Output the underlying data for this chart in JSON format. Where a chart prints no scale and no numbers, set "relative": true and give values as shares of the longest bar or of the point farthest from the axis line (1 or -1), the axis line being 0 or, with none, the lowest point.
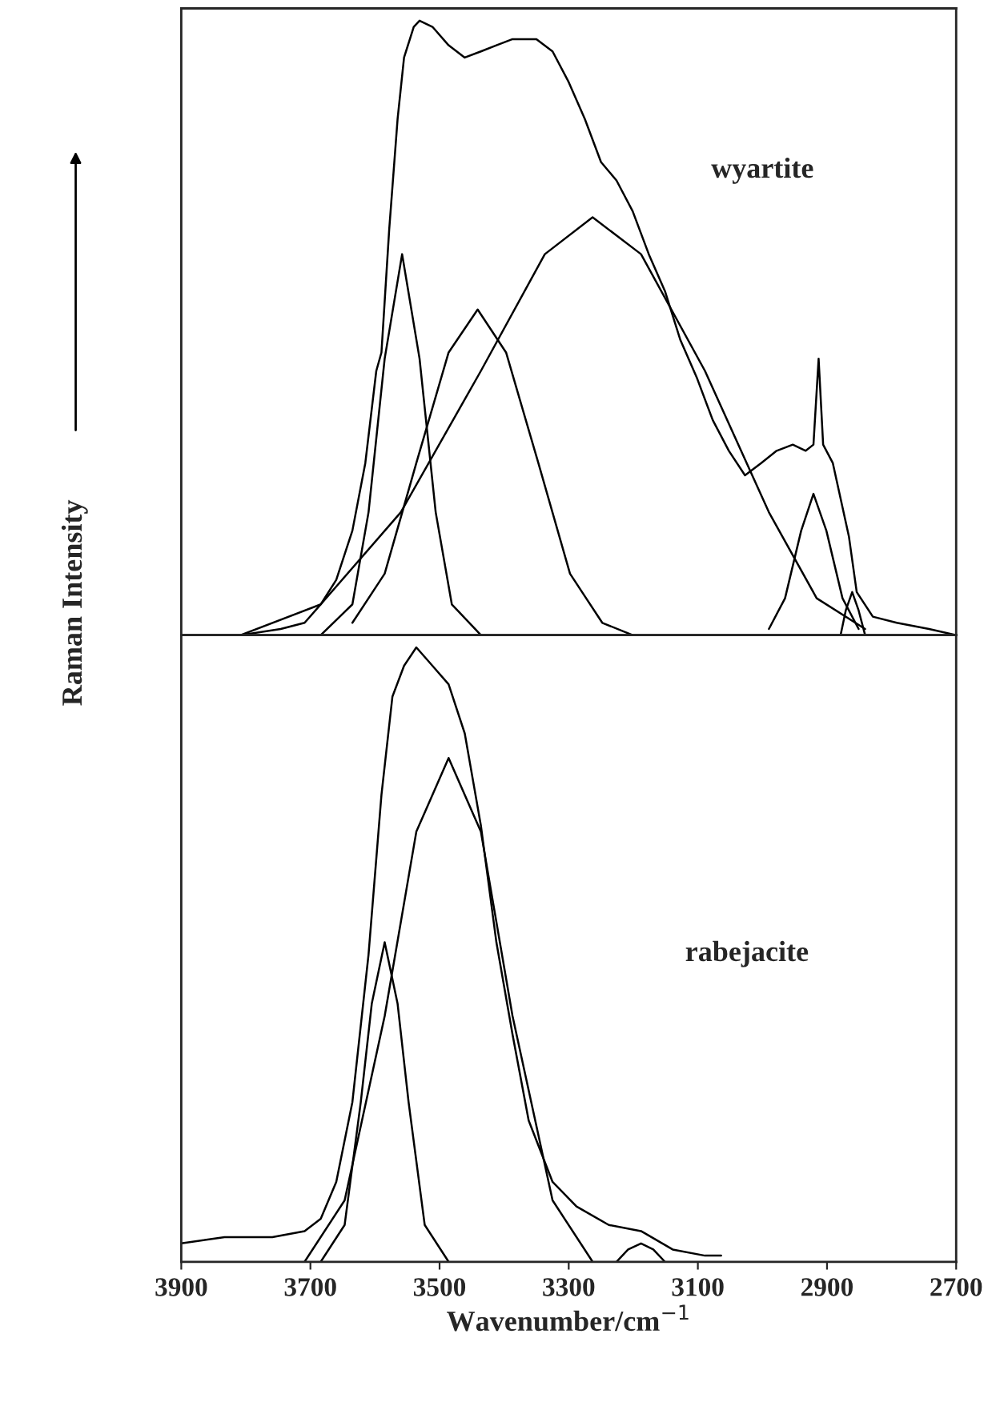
{
  "chart_data": [
    {
      "type": "line",
      "relative": true,
      "xlim": [
        3900,
        2700
      ],
      "tick_labels": false,
      "ylabel": "Raman Intensity",
      "annotations": [
        "wyartite"
      ],
      "series": [
        {
          "color": "#000000",
          "x": [
            3895,
            3808,
            3746,
            3709,
            3684,
            3660,
            3635,
            3615,
            3598,
            3590,
            3578,
            3565,
            3555,
            3540,
            3531,
            3511,
            3486,
            3461,
            3436,
            3412,
            3387,
            3350,
            3325,
            3300,
            3275,
            3250,
            3226,
            3201,
            3176,
            3151,
            3127,
            3102,
            3077,
            3052,
            3027,
            3002,
            2978,
            2953,
            2933,
            2921,
            2913,
            2906,
            2891,
            2866,
            2854,
            2829,
            2792,
            2742,
            2700
          ],
          "values": [
            0,
            0,
            0.01,
            0.02,
            0.05,
            0.09,
            0.17,
            0.28,
            0.43,
            0.46,
            0.66,
            0.84,
            0.94,
            0.99,
            1.0,
            0.99,
            0.96,
            0.94,
            0.95,
            0.96,
            0.97,
            0.97,
            0.95,
            0.9,
            0.84,
            0.77,
            0.74,
            0.69,
            0.62,
            0.56,
            0.48,
            0.42,
            0.35,
            0.3,
            0.26,
            0.28,
            0.3,
            0.31,
            0.3,
            0.31,
            0.45,
            0.31,
            0.28,
            0.16,
            0.07,
            0.03,
            0.02,
            0.01,
            0
          ]
        },
        {
          "color": "#000000",
          "x": [
            3684,
            3635,
            3610,
            3585,
            3558,
            3531,
            3506,
            3481,
            3436
          ],
          "values": [
            0,
            0.05,
            0.2,
            0.45,
            0.62,
            0.45,
            0.2,
            0.05,
            0
          ]
        },
        {
          "color": "#000000",
          "x": [
            3635,
            3585,
            3536,
            3486,
            3441,
            3397,
            3347,
            3298,
            3248,
            3201
          ],
          "values": [
            0.02,
            0.1,
            0.28,
            0.46,
            0.53,
            0.46,
            0.28,
            0.1,
            0.02,
            0
          ]
        },
        {
          "color": "#000000",
          "x": [
            3808,
            3684,
            3560,
            3436,
            3337,
            3263,
            3188,
            3089,
            2990,
            2916,
            2841
          ],
          "values": [
            0,
            0.05,
            0.2,
            0.43,
            0.62,
            0.68,
            0.62,
            0.43,
            0.2,
            0.06,
            0.01
          ]
        },
        {
          "color": "#000000",
          "x": [
            2990,
            2965,
            2940,
            2921,
            2901,
            2876,
            2851
          ],
          "values": [
            0.01,
            0.06,
            0.17,
            0.23,
            0.17,
            0.06,
            0.01
          ]
        },
        {
          "color": "#000000",
          "x": [
            2879,
            2871,
            2861,
            2851,
            2841
          ],
          "values": [
            0,
            0.04,
            0.07,
            0.04,
            0
          ]
        }
      ]
    },
    {
      "type": "line",
      "relative": true,
      "xlim": [
        3900,
        2700
      ],
      "xticks": [
        3900,
        3700,
        3500,
        3300,
        3100,
        2900,
        2700
      ],
      "tick_labels": "x",
      "xlabel": "Wavenumber/cm$^{−1}$",
      "annotations": [
        "rabejacite"
      ],
      "series": [
        {
          "color": "#000000",
          "x": [
            3900,
            3833,
            3759,
            3709,
            3684,
            3660,
            3635,
            3610,
            3590,
            3573,
            3555,
            3536,
            3511,
            3486,
            3461,
            3436,
            3412,
            3387,
            3362,
            3325,
            3288,
            3238,
            3188,
            3139,
            3089,
            3064
          ],
          "values": [
            0.03,
            0.04,
            0.04,
            0.05,
            0.07,
            0.13,
            0.26,
            0.5,
            0.76,
            0.92,
            0.97,
            1.0,
            0.97,
            0.94,
            0.86,
            0.71,
            0.52,
            0.37,
            0.23,
            0.13,
            0.09,
            0.06,
            0.05,
            0.02,
            0.01,
            0.01
          ]
        },
        {
          "color": "#000000",
          "x": [
            3684,
            3647,
            3622,
            3605,
            3585,
            3565,
            3548,
            3523,
            3486
          ],
          "values": [
            0,
            0.06,
            0.26,
            0.42,
            0.52,
            0.42,
            0.26,
            0.06,
            0
          ]
        },
        {
          "color": "#000000",
          "x": [
            3709,
            3647,
            3585,
            3536,
            3486,
            3436,
            3387,
            3325,
            3263
          ],
          "values": [
            0,
            0.1,
            0.4,
            0.7,
            0.82,
            0.7,
            0.4,
            0.1,
            0
          ]
        },
        {
          "color": "#000000",
          "x": [
            3226,
            3208,
            3188,
            3169,
            3151
          ],
          "values": [
            0,
            0.02,
            0.03,
            0.02,
            0
          ]
        }
      ]
    }
  ]
}
